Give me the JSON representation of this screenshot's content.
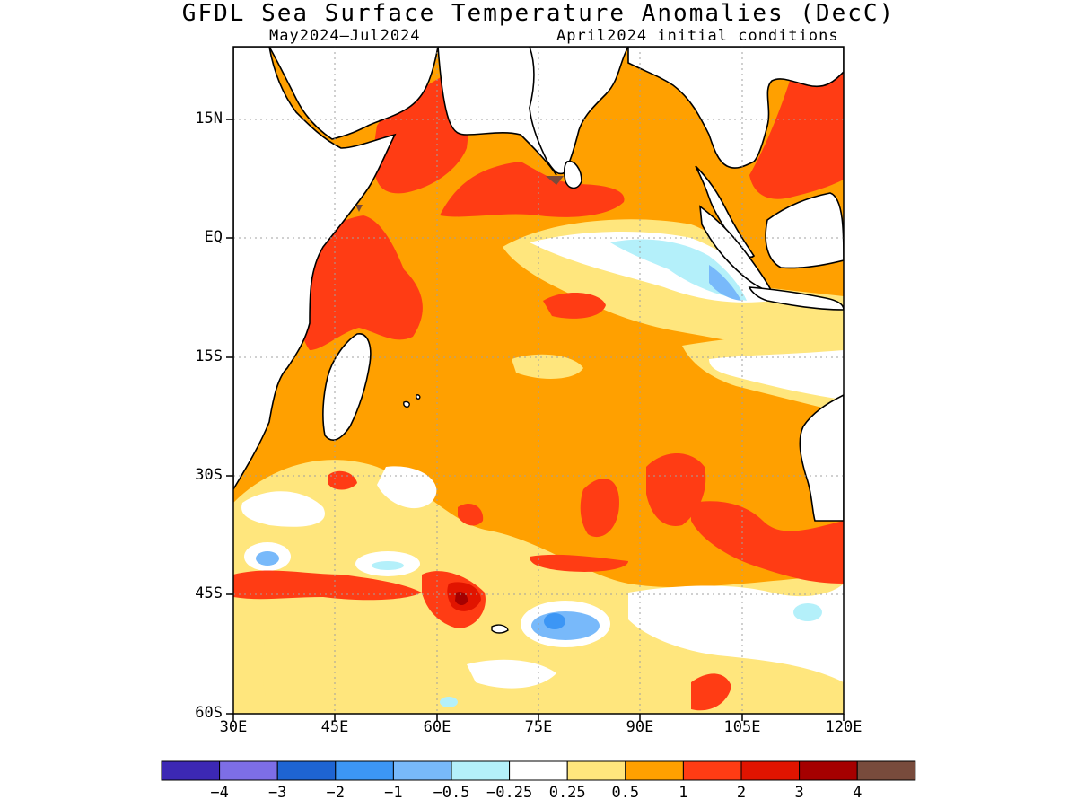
{
  "title": "GFDL Sea Surface Temperature Anomalies (DecC)",
  "subtitle_left": "May2024–Jul2024",
  "subtitle_right": "April2024 initial conditions",
  "lat_labels": [
    "15N",
    "EQ",
    "15S",
    "30S",
    "45S",
    "60S"
  ],
  "lon_labels": [
    "30E",
    "45E",
    "60E",
    "75E",
    "90E",
    "105E",
    "120E"
  ],
  "colorbar": {
    "labels": [
      "−4",
      "−3",
      "−2",
      "−1",
      "−0.5",
      "−0.25",
      "0.25",
      "0.5",
      "1",
      "2",
      "3",
      "4"
    ],
    "colors": [
      "#3c28b4",
      "#7d6ee6",
      "#1e64d2",
      "#3c96f5",
      "#78b9fa",
      "#b4f0fa",
      "#ffffff",
      "#ffe67d",
      "#ffa000",
      "#ff3c14",
      "#e11400",
      "#a50000",
      "#784b3c"
    ]
  },
  "map_colors": {
    "land": "#ffffff",
    "coast": "#000000",
    "grid": "#a0a0a0",
    "frame": "#000000"
  }
}
